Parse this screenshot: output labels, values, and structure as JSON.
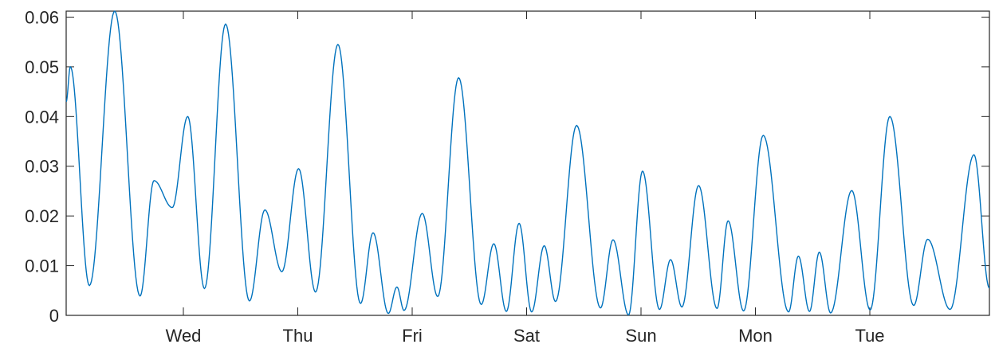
{
  "chart_data": {
    "type": "line",
    "title": "",
    "xlabel": "",
    "ylabel": "",
    "x_categories": [
      "Wed",
      "Thu",
      "Fri",
      "Sat",
      "Sun",
      "Mon",
      "Tue"
    ],
    "ylim": [
      0,
      0.0612
    ],
    "yticks": [
      0,
      0.01,
      0.02,
      0.03,
      0.04,
      0.05,
      0.06
    ],
    "ytick_labels": [
      "0",
      "0.01",
      "0.02",
      "0.03",
      "0.04",
      "0.05",
      "0.06"
    ],
    "grid": false,
    "series": [
      {
        "color": "#0072BD",
        "points": [
          [
            0.0,
            0.043
          ],
          [
            0.02,
            0.05
          ],
          [
            0.111,
            0.006
          ],
          [
            0.232,
            0.0612
          ],
          [
            0.353,
            0.0039
          ],
          [
            0.42,
            0.0271
          ],
          [
            0.507,
            0.0217
          ],
          [
            0.581,
            0.04
          ],
          [
            0.661,
            0.0054
          ],
          [
            0.762,
            0.0586
          ],
          [
            0.876,
            0.0029
          ],
          [
            0.95,
            0.0212
          ],
          [
            1.031,
            0.0088
          ],
          [
            1.111,
            0.0295
          ],
          [
            1.192,
            0.0047
          ],
          [
            1.299,
            0.0545
          ],
          [
            1.407,
            0.0024
          ],
          [
            1.467,
            0.0166
          ],
          [
            1.54,
            0.0004
          ],
          [
            1.581,
            0.0057
          ],
          [
            1.615,
            0.001
          ],
          [
            1.702,
            0.0205
          ],
          [
            1.776,
            0.0038
          ],
          [
            1.876,
            0.0478
          ],
          [
            1.984,
            0.0022
          ],
          [
            2.044,
            0.0144
          ],
          [
            2.104,
            0.0008
          ],
          [
            2.165,
            0.0185
          ],
          [
            2.225,
            0.0007
          ],
          [
            2.285,
            0.014
          ],
          [
            2.339,
            0.0028
          ],
          [
            2.44,
            0.0382
          ],
          [
            2.554,
            0.0015
          ],
          [
            2.614,
            0.0152
          ],
          [
            2.688,
            0.0001
          ],
          [
            2.755,
            0.029
          ],
          [
            2.836,
            0.0012
          ],
          [
            2.889,
            0.0112
          ],
          [
            2.943,
            0.0017
          ],
          [
            3.023,
            0.0261
          ],
          [
            3.111,
            0.0014
          ],
          [
            3.164,
            0.019
          ],
          [
            3.238,
            0.0009
          ],
          [
            3.332,
            0.0362
          ],
          [
            3.453,
            0.0007
          ],
          [
            3.5,
            0.0119
          ],
          [
            3.553,
            0.0008
          ],
          [
            3.6,
            0.0127
          ],
          [
            3.654,
            0.0005
          ],
          [
            3.755,
            0.0251
          ],
          [
            3.843,
            0.0011
          ],
          [
            3.937,
            0.04
          ],
          [
            4.051,
            0.002
          ],
          [
            4.118,
            0.0153
          ],
          [
            4.225,
            0.0012
          ],
          [
            4.339,
            0.0323
          ],
          [
            4.413,
            0.0055
          ]
        ]
      }
    ]
  }
}
